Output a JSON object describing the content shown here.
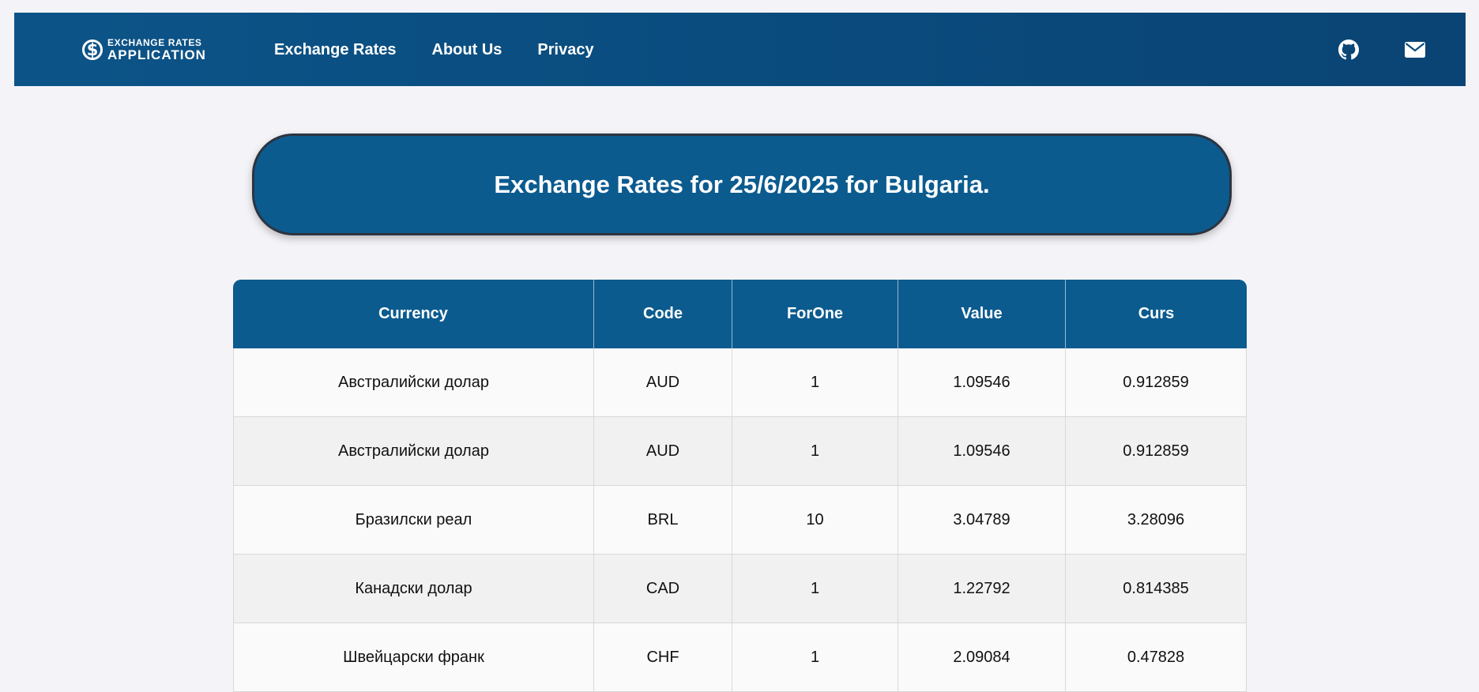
{
  "navbar": {
    "logo": {
      "line1": "EXCHANGE RATES",
      "line2": "APPLICATION",
      "icon": "dollar-circle-icon"
    },
    "links": [
      "Exchange Rates",
      "About Us",
      "Privacy"
    ],
    "icons": [
      "github-icon",
      "envelope-icon"
    ]
  },
  "banner": {
    "title": "Exchange Rates for 25/6/2025 for Bulgaria."
  },
  "table": {
    "headers": [
      "Currency",
      "Code",
      "ForOne",
      "Value",
      "Curs"
    ],
    "rows": [
      [
        "Австралийски долар",
        "AUD",
        "1",
        "1.09546",
        "0.912859"
      ],
      [
        "Австралийски долар",
        "AUD",
        "1",
        "1.09546",
        "0.912859"
      ],
      [
        "Бразилски реал",
        "BRL",
        "10",
        "3.04789",
        "3.28096"
      ],
      [
        "Канадски долар",
        "CAD",
        "1",
        "1.22792",
        "0.814385"
      ],
      [
        "Швейцарски франк",
        "CHF",
        "1",
        "2.09084",
        "0.47828"
      ]
    ]
  },
  "colors": {
    "primary": "#0b5b8f",
    "navbar": "#0a4a7c",
    "background": "#f4f4f8"
  }
}
